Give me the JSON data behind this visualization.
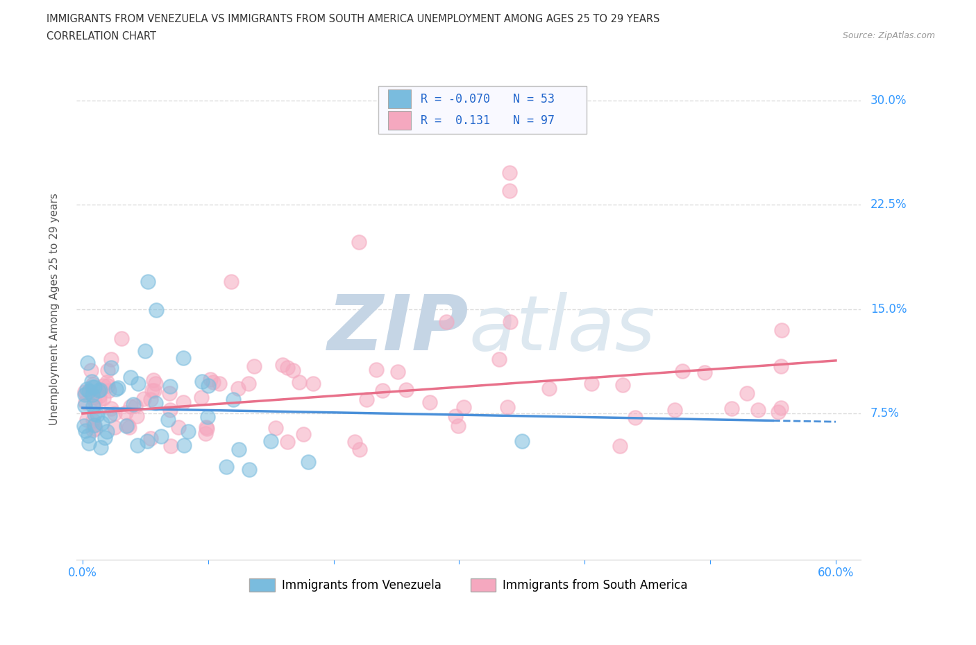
{
  "title_line1": "IMMIGRANTS FROM VENEZUELA VS IMMIGRANTS FROM SOUTH AMERICA UNEMPLOYMENT AMONG AGES 25 TO 29 YEARS",
  "title_line2": "CORRELATION CHART",
  "source_text": "Source: ZipAtlas.com",
  "ylabel": "Unemployment Among Ages 25 to 29 years",
  "xlim": [
    -0.005,
    0.62
  ],
  "ylim": [
    -0.03,
    0.33
  ],
  "xtick_labels": [
    "0.0%",
    "",
    "",
    "",
    "",
    "",
    "60.0%"
  ],
  "xtick_vals": [
    0.0,
    0.1,
    0.2,
    0.3,
    0.4,
    0.5,
    0.6
  ],
  "ytick_labels": [
    "7.5%",
    "15.0%",
    "22.5%",
    "30.0%"
  ],
  "ytick_vals": [
    0.075,
    0.15,
    0.225,
    0.3
  ],
  "color_venezuela": "#7abcde",
  "color_south_america": "#f5a8bf",
  "watermark_text": "ZIPatlas",
  "watermark_color": "#cdd9e6",
  "legend_R_venezuela": "-0.070",
  "legend_N_venezuela": "53",
  "legend_R_south_america": " 0.131",
  "legend_N_south_america": "97",
  "legend_label_venezuela": "Immigrants from Venezuela",
  "legend_label_south_america": "Immigrants from South America",
  "venezuela_trend_y_start": 0.079,
  "venezuela_trend_y_end": 0.069,
  "venezuela_trend_solid_end": 0.55,
  "south_america_trend_y_start": 0.075,
  "south_america_trend_y_end": 0.113,
  "background_color": "#ffffff",
  "grid_color": "#dddddd",
  "title_color": "#333333",
  "tick_color": "#3399ff"
}
